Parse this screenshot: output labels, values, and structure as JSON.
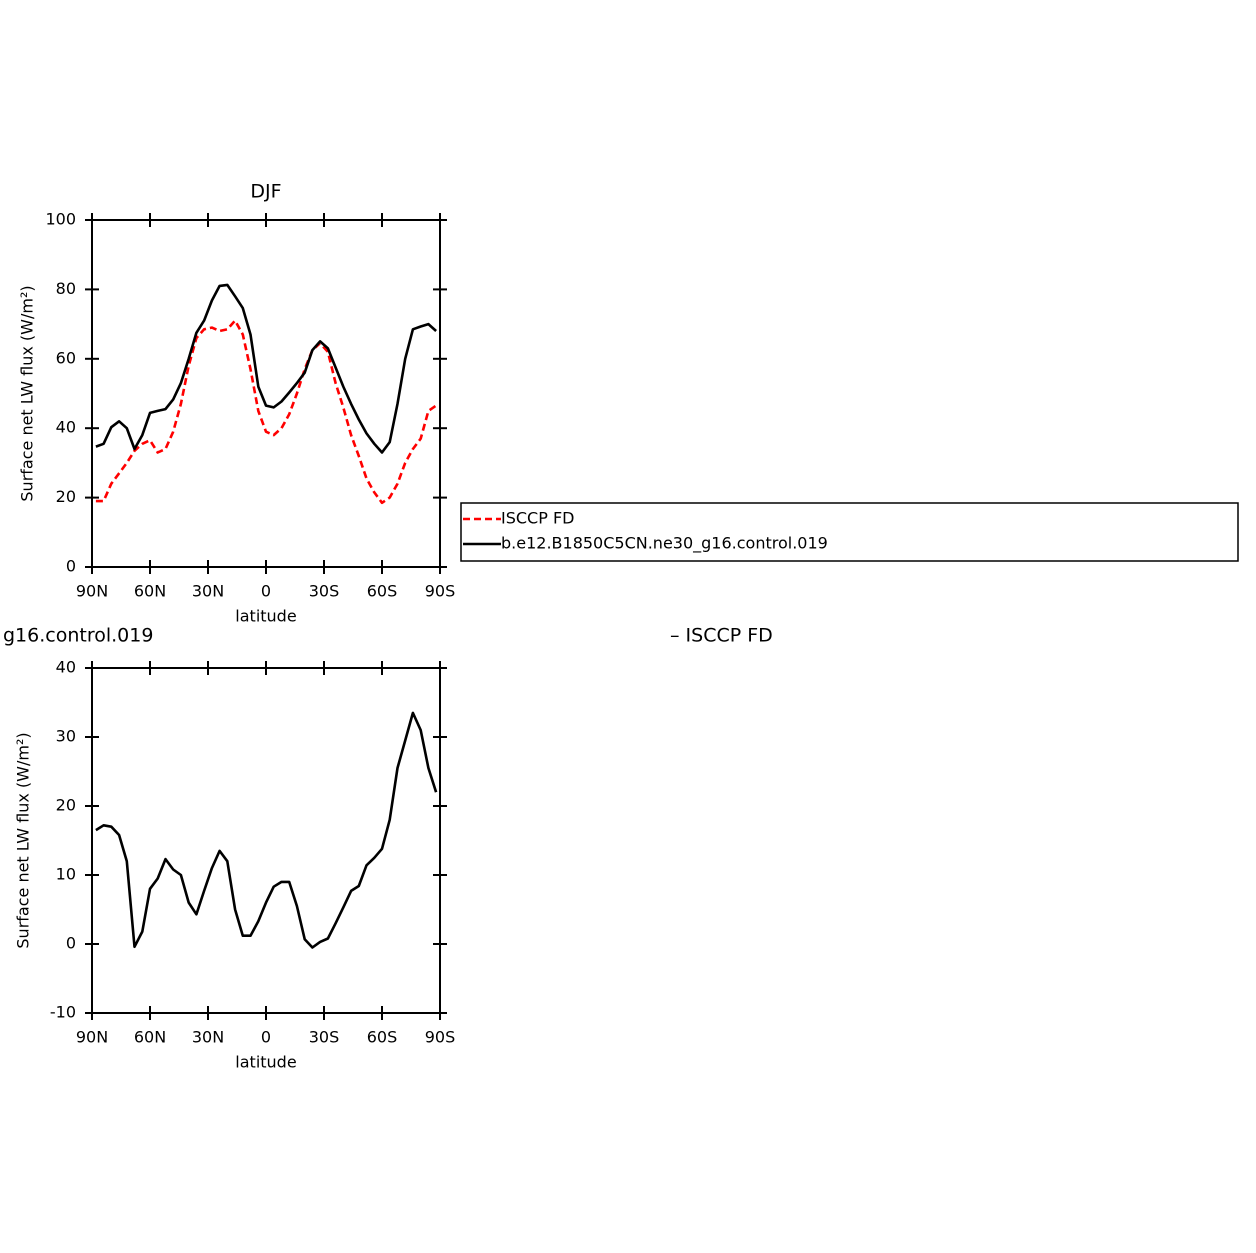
{
  "chart_data": [
    {
      "type": "line",
      "title": "DJF",
      "x_label": "latitude",
      "y_label": "Surface net LW flux (W/m²)",
      "x": [
        88,
        84,
        80,
        76,
        72,
        68,
        64,
        60,
        56,
        52,
        48,
        44,
        40,
        36,
        32,
        28,
        24,
        20,
        16,
        12,
        8,
        4,
        0,
        -4,
        -8,
        -12,
        -16,
        -20,
        -24,
        -28,
        -32,
        -36,
        -40,
        -44,
        -48,
        -52,
        -56,
        -60,
        -64,
        -68,
        -72,
        -76,
        -80,
        -84,
        -88
      ],
      "series": [
        {
          "name": "ISCCP FD",
          "color": "#ff0000",
          "dashed": true,
          "values": [
            19,
            19,
            24,
            27,
            30,
            33.5,
            35.5,
            36.5,
            33,
            34,
            39,
            47,
            58,
            66,
            68.5,
            69,
            68,
            68.5,
            71,
            67,
            57,
            45,
            39,
            38,
            40,
            44,
            50,
            57,
            62.5,
            64.5,
            62,
            53,
            46,
            38,
            32,
            25.5,
            21.5,
            18.5,
            20,
            24,
            30,
            34,
            37,
            45,
            46.5
          ]
        },
        {
          "name": "b.e12.B1850C5CN.ne30_g16.control.019",
          "color": "#000000",
          "dashed": false,
          "values": [
            34.7,
            35.5,
            40.3,
            42,
            40,
            34,
            38,
            44.4,
            45,
            45.5,
            48.3,
            53,
            60,
            67.5,
            71,
            76.8,
            81,
            81.3,
            78,
            74.6,
            67,
            52,
            46.5,
            46,
            47.7,
            50.3,
            53,
            56,
            62.5,
            65,
            63,
            57.5,
            52,
            47,
            42.5,
            38.5,
            35.5,
            33,
            36,
            47,
            60,
            68.5,
            69.3,
            70,
            68
          ]
        }
      ],
      "xlim": [
        90,
        -90
      ],
      "xticks": [
        {
          "value": 90,
          "label": "90N"
        },
        {
          "value": 60,
          "label": "60N"
        },
        {
          "value": 30,
          "label": "30N"
        },
        0,
        {
          "value": -30,
          "label": "30S"
        },
        {
          "value": -60,
          "label": "60S"
        },
        {
          "value": -90,
          "label": "90S"
        }
      ],
      "ylim": [
        0,
        100
      ],
      "yticks": [
        0,
        20,
        40,
        60,
        80,
        100
      ],
      "legend": "right"
    },
    {
      "type": "line",
      "title_left": "g16.control.019",
      "title_right": "– ISCCP FD",
      "x_label": "latitude",
      "y_label": "Surface net LW flux (W/m²)",
      "x": [
        88,
        84,
        80,
        76,
        72,
        68,
        64,
        60,
        56,
        52,
        48,
        44,
        40,
        36,
        32,
        28,
        24,
        20,
        16,
        12,
        8,
        4,
        0,
        -4,
        -8,
        -12,
        -16,
        -20,
        -24,
        -28,
        -32,
        -36,
        -40,
        -44,
        -48,
        -52,
        -56,
        -60,
        -64,
        -68,
        -72,
        -76,
        -80,
        -84,
        -88
      ],
      "values": [
        16.5,
        17.2,
        17,
        15.8,
        12,
        -0.4,
        1.8,
        8,
        9.5,
        12.3,
        10.8,
        10,
        6,
        4.3,
        7.7,
        11,
        13.5,
        12,
        5,
        1.2,
        1.2,
        3.3,
        6,
        8.3,
        9,
        9,
        5.5,
        0.7,
        -0.5,
        0.3,
        0.8,
        3,
        5.3,
        7.7,
        8.4,
        11.4,
        12.5,
        13.8,
        18,
        25.5,
        29.5,
        33.5,
        31,
        25.5,
        22
      ],
      "color": "#000000",
      "xlim": [
        90,
        -90
      ],
      "xticks": [
        {
          "value": 90,
          "label": "90N"
        },
        {
          "value": 60,
          "label": "60N"
        },
        {
          "value": 30,
          "label": "30N"
        },
        0,
        {
          "value": -30,
          "label": "30S"
        },
        {
          "value": -60,
          "label": "60S"
        },
        {
          "value": -90,
          "label": "90S"
        }
      ],
      "ylim": [
        -10,
        40
      ],
      "yticks": [
        -10,
        0,
        10,
        20,
        30,
        40
      ]
    }
  ]
}
